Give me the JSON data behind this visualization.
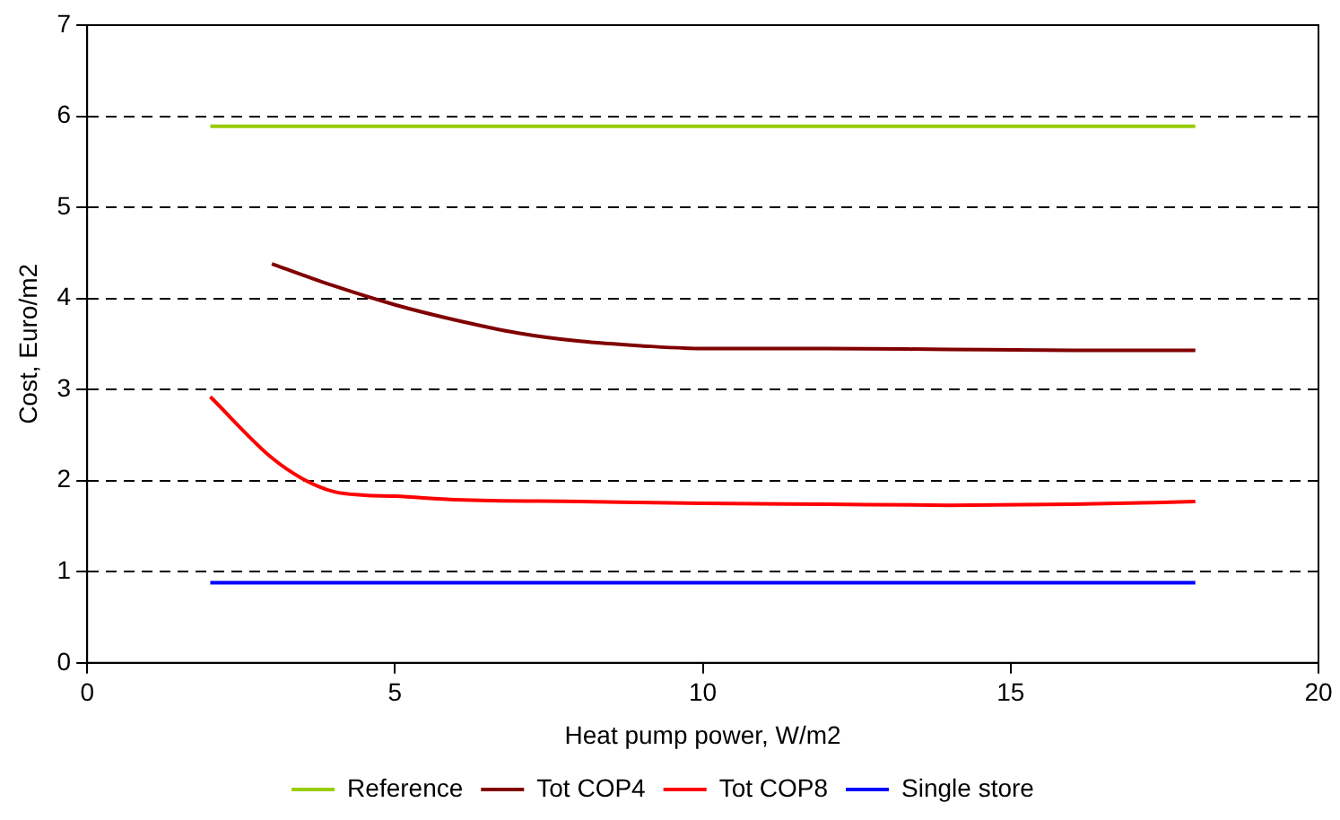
{
  "chart_data": {
    "type": "line",
    "xlabel": "Heat pump power, W/m2",
    "ylabel": "Cost, Euro/m2",
    "xlim": [
      0,
      20
    ],
    "xticks": [
      0,
      5,
      10,
      15,
      20
    ],
    "ylim": [
      0,
      7
    ],
    "yticks": [
      0,
      1,
      2,
      3,
      4,
      5,
      6,
      7
    ],
    "grid": "y",
    "legend": "bottom",
    "marker": "none",
    "series": [
      {
        "name": "Reference",
        "color": "#99cc00",
        "x": [
          2,
          18
        ],
        "values": [
          5.89,
          5.89
        ]
      },
      {
        "name": "Tot COP4",
        "color": "#800000",
        "x": [
          3,
          4,
          5,
          6,
          7,
          8,
          9,
          10,
          12,
          14,
          16,
          18
        ],
        "values": [
          4.38,
          4.14,
          3.93,
          3.76,
          3.62,
          3.53,
          3.48,
          3.45,
          3.45,
          3.44,
          3.43,
          3.43
        ]
      },
      {
        "name": "Tot COP8",
        "color": "#ff0000",
        "x": [
          2,
          3,
          3.5,
          4,
          4.5,
          5,
          6,
          8,
          10,
          12,
          14,
          16,
          18
        ],
        "values": [
          2.92,
          2.25,
          2.02,
          1.88,
          1.84,
          1.83,
          1.79,
          1.77,
          1.75,
          1.74,
          1.73,
          1.74,
          1.77
        ]
      },
      {
        "name": "Single store",
        "color": "#0000ff",
        "x": [
          2,
          18
        ],
        "values": [
          0.88,
          0.88
        ]
      }
    ]
  }
}
